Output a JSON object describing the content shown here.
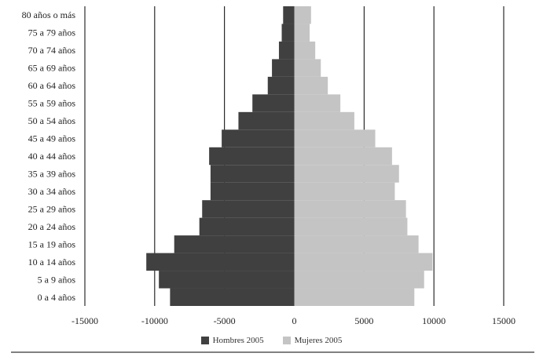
{
  "chart_data": {
    "type": "bar",
    "orientation": "horizontal",
    "subtype": "population-pyramid",
    "title": "",
    "xlabel": "",
    "ylabel": "",
    "xlim": [
      -15000,
      15000
    ],
    "xticks": [
      -15000,
      -10000,
      -5000,
      0,
      5000,
      10000,
      15000
    ],
    "xtick_labels": [
      "-15000",
      "-10000",
      "-5000",
      "0",
      "5000",
      "10000",
      "15000"
    ],
    "grid": "vertical",
    "legend_position": "bottom",
    "categories": [
      "0 a 4 años",
      "5 a 9 años",
      "10 a 14 años",
      "15 a 19 años",
      "20 a 24 años",
      "25 a 29 años",
      "30 a 34 años",
      "35 a 39 años",
      "40 a 44 años",
      "45 a 49 años",
      "50 a 54 años",
      "55 a 59 años",
      "60 a 64 años",
      "65 a 69 años",
      "70 a 74 años",
      "75 a 79 años",
      "80 años o más"
    ],
    "series": [
      {
        "name": "Hombres 2005",
        "color": "#404040",
        "values": [
          -8900,
          -9700,
          -10600,
          -8600,
          -6800,
          -6600,
          -6000,
          -6000,
          -6100,
          -5200,
          -4000,
          -3000,
          -1900,
          -1600,
          -1100,
          -900,
          -800
        ]
      },
      {
        "name": "Mujeres 2005",
        "color": "#c4c4c4",
        "values": [
          8600,
          9300,
          9900,
          8900,
          8100,
          8000,
          7200,
          7500,
          7000,
          5800,
          4300,
          3300,
          2400,
          1900,
          1500,
          1100,
          1200
        ]
      }
    ]
  }
}
